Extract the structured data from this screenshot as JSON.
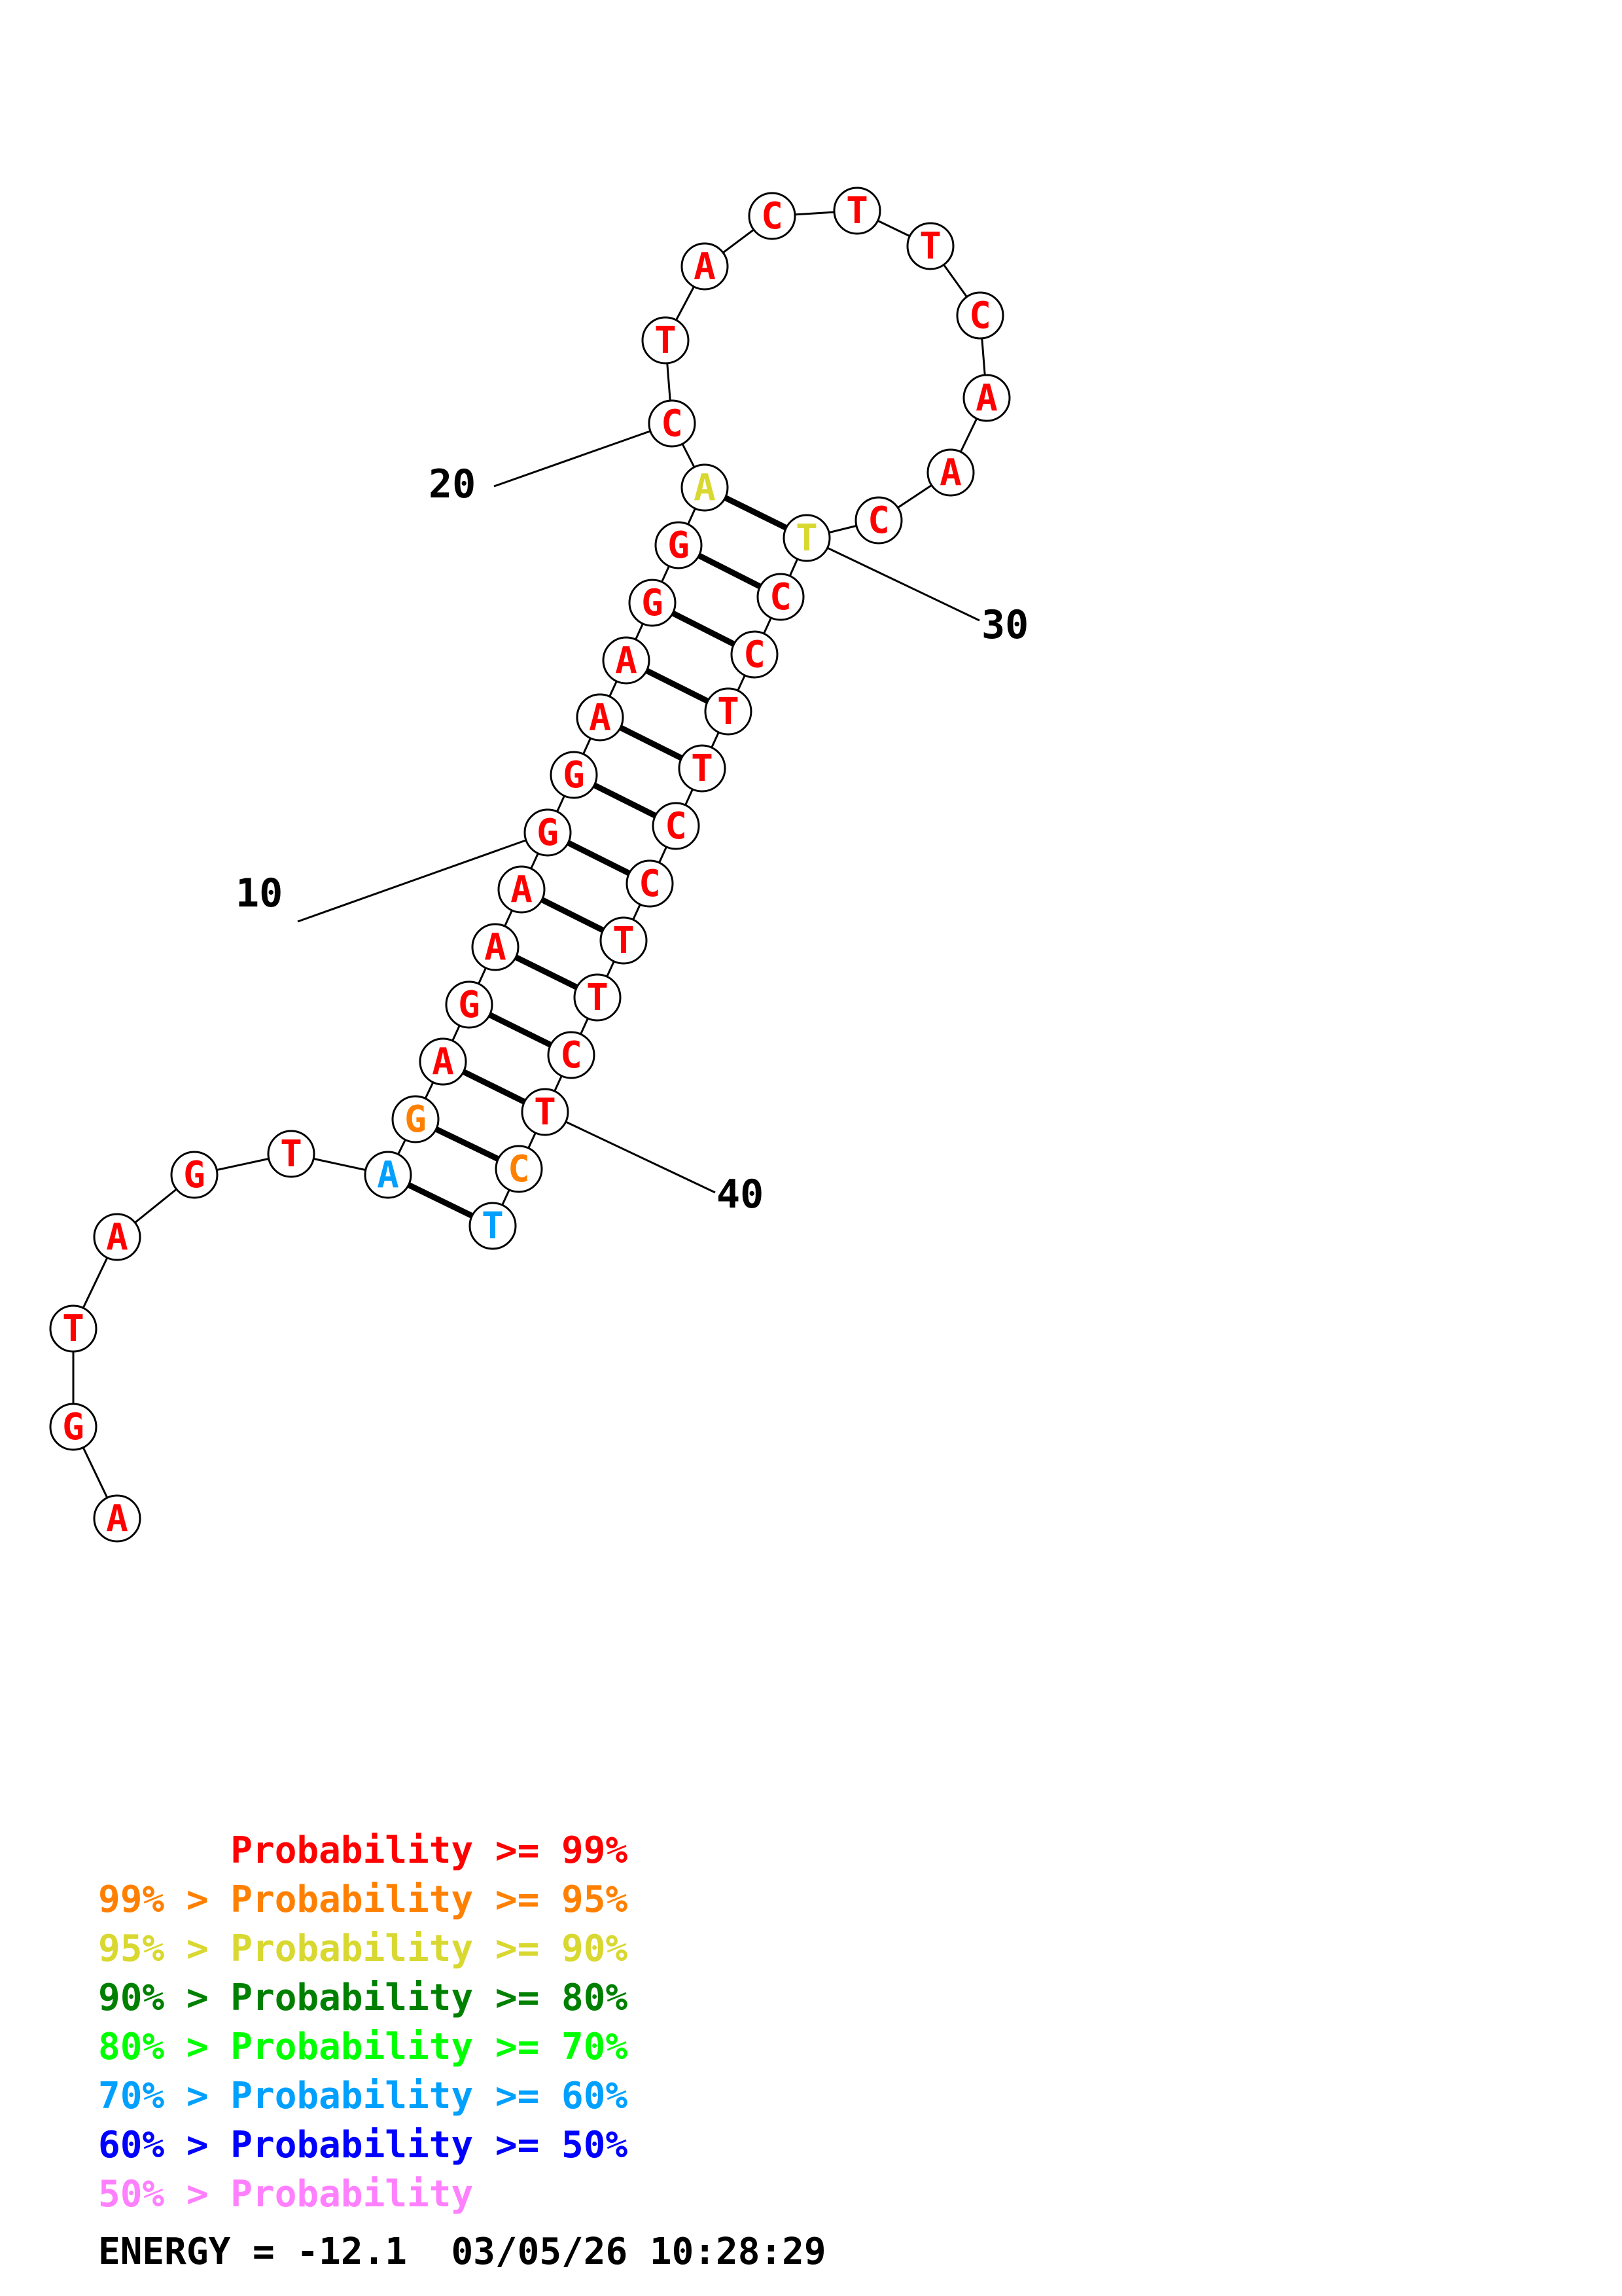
{
  "colors": {
    "p99": "#ff0000",
    "p95": "#ff8000",
    "p90": "#d8d830",
    "p80": "#008000",
    "p70": "#00ff00",
    "p60": "#00a0ff",
    "p50": "#0000ff",
    "p0": "#ff80ff"
  },
  "structure": {
    "sequence": [
      "A",
      "G",
      "T",
      "A",
      "G",
      "T",
      "A",
      "G",
      "A",
      "G",
      "A",
      "A",
      "G",
      "G",
      "A",
      "A",
      "G",
      "G",
      "A",
      "C",
      "T",
      "A",
      "C",
      "T",
      "T",
      "C",
      "A",
      "A",
      "C",
      "T",
      "C",
      "C",
      "T",
      "T",
      "C",
      "C",
      "T",
      "T",
      "C",
      "T",
      "C",
      "T"
    ],
    "probability_class": [
      "p99",
      "p99",
      "p99",
      "p99",
      "p99",
      "p99",
      "p60",
      "p95",
      "p99",
      "p99",
      "p99",
      "p99",
      "p99",
      "p99",
      "p99",
      "p99",
      "p99",
      "p99",
      "p90",
      "p99",
      "p99",
      "p99",
      "p99",
      "p99",
      "p99",
      "p99",
      "p99",
      "p99",
      "p99",
      "p90",
      "p99",
      "p99",
      "p99",
      "p99",
      "p99",
      "p99",
      "p99",
      "p99",
      "p99",
      "p99",
      "p95",
      "p60"
    ],
    "pairs": [
      [
        7,
        42
      ],
      [
        8,
        41
      ],
      [
        9,
        40
      ],
      [
        10,
        39
      ],
      [
        11,
        38
      ],
      [
        12,
        37
      ],
      [
        13,
        36
      ],
      [
        14,
        35
      ],
      [
        15,
        34
      ],
      [
        16,
        33
      ],
      [
        17,
        32
      ],
      [
        18,
        31
      ],
      [
        19,
        30
      ]
    ],
    "position_labels": [
      "10",
      "20",
      "30",
      "40"
    ]
  },
  "legend": [
    {
      "prefix": "",
      "text": "Probability >= 99%",
      "color": "p99"
    },
    {
      "prefix": "99% > ",
      "text": "Probability >= 95%",
      "color": "p95"
    },
    {
      "prefix": "95% > ",
      "text": "Probability >= 90%",
      "color": "p90"
    },
    {
      "prefix": "90% > ",
      "text": "Probability >= 80%",
      "color": "p80"
    },
    {
      "prefix": "80% > ",
      "text": "Probability >= 70%",
      "color": "p70"
    },
    {
      "prefix": "70% > ",
      "text": "Probability >= 60%",
      "color": "p60"
    },
    {
      "prefix": "60% > ",
      "text": "Probability >= 50%",
      "color": "p50"
    },
    {
      "prefix": "50% > ",
      "text": "Probability",
      "color": "p0"
    }
  ],
  "footer": {
    "energy": "ENERGY = -12.1",
    "timestamp": "03/05/26 10:28:29"
  }
}
